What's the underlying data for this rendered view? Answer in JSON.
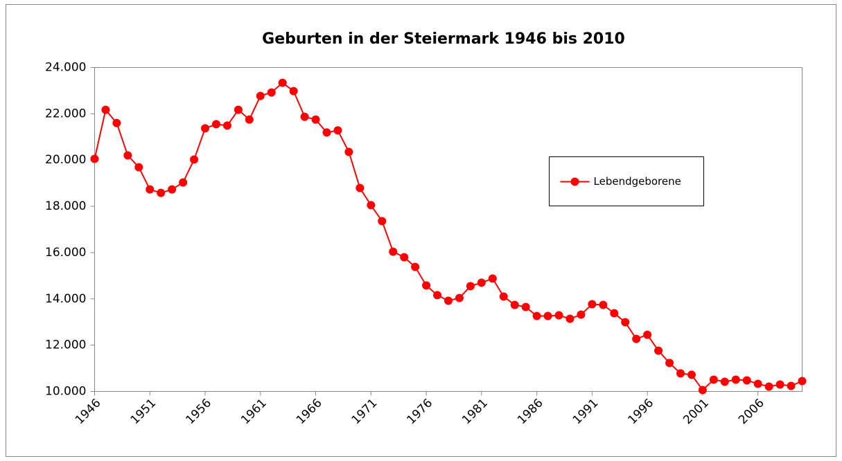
{
  "chart_data": {
    "type": "line",
    "title": "Geburten in der Steiermark 1946 bis 2010",
    "x": [
      1946,
      1947,
      1948,
      1949,
      1950,
      1951,
      1952,
      1953,
      1954,
      1955,
      1956,
      1957,
      1958,
      1959,
      1960,
      1961,
      1962,
      1963,
      1964,
      1965,
      1966,
      1967,
      1968,
      1969,
      1970,
      1971,
      1972,
      1973,
      1974,
      1975,
      1976,
      1977,
      1978,
      1979,
      1980,
      1981,
      1982,
      1983,
      1984,
      1985,
      1986,
      1987,
      1988,
      1989,
      1990,
      1991,
      1992,
      1993,
      1994,
      1995,
      1996,
      1997,
      1998,
      1999,
      2000,
      2001,
      2002,
      2003,
      2004,
      2005,
      2006,
      2007,
      2008,
      2009,
      2010
    ],
    "series": [
      {
        "name": "Lebendgeborene",
        "color": "#ff0000",
        "values": [
          20050,
          22170,
          21600,
          20200,
          19690,
          18730,
          18580,
          18730,
          19030,
          20020,
          21370,
          21550,
          21490,
          22170,
          21750,
          22770,
          22920,
          23340,
          22980,
          21870,
          21750,
          21190,
          21280,
          20350,
          18790,
          18050,
          17360,
          16040,
          15800,
          15380,
          14580,
          14160,
          13920,
          14040,
          14550,
          14700,
          14880,
          14100,
          13740,
          13650,
          13260,
          13260,
          13290,
          13140,
          13320,
          13770,
          13740,
          13380,
          12990,
          12270,
          12450,
          11760,
          11230,
          10780,
          10720,
          10060,
          10510,
          10420,
          10510,
          10480,
          10330,
          10210,
          10300,
          10240,
          10450
        ]
      }
    ],
    "xlim": [
      1946,
      2010
    ],
    "xticks": [
      1946,
      1951,
      1956,
      1961,
      1966,
      1971,
      1976,
      1981,
      1986,
      1991,
      1996,
      2001,
      2006
    ],
    "ylim": [
      10000,
      24000
    ],
    "yticks": [
      {
        "value": 10000,
        "label": "10.000"
      },
      {
        "value": 12000,
        "label": "12.000"
      },
      {
        "value": 14000,
        "label": "14.000"
      },
      {
        "value": 16000,
        "label": "16.000"
      },
      {
        "value": 18000,
        "label": "18.000"
      },
      {
        "value": 20000,
        "label": "20.000"
      },
      {
        "value": 22000,
        "label": "22.000"
      },
      {
        "value": 24000,
        "label": "24.000"
      }
    ],
    "grid": false,
    "legend": "right"
  }
}
